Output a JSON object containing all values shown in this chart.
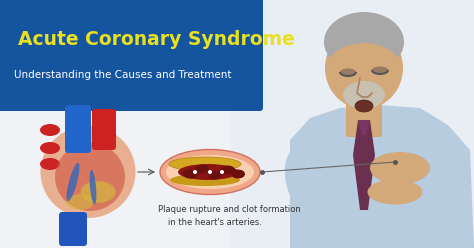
{
  "title": "Acute Coronary Syndrome",
  "subtitle": "Understanding the Causes and Treatment",
  "caption_line1": "Plaque rupture and clot formation",
  "caption_line2": "in the heart's arteries.",
  "bg_color": "#f0f2f5",
  "header_bg": "#1555a0",
  "title_color": "#e8e020",
  "subtitle_color": "#ffffff",
  "caption_color": "#333333",
  "fig_width": 4.74,
  "fig_height": 2.48,
  "dpi": 100
}
